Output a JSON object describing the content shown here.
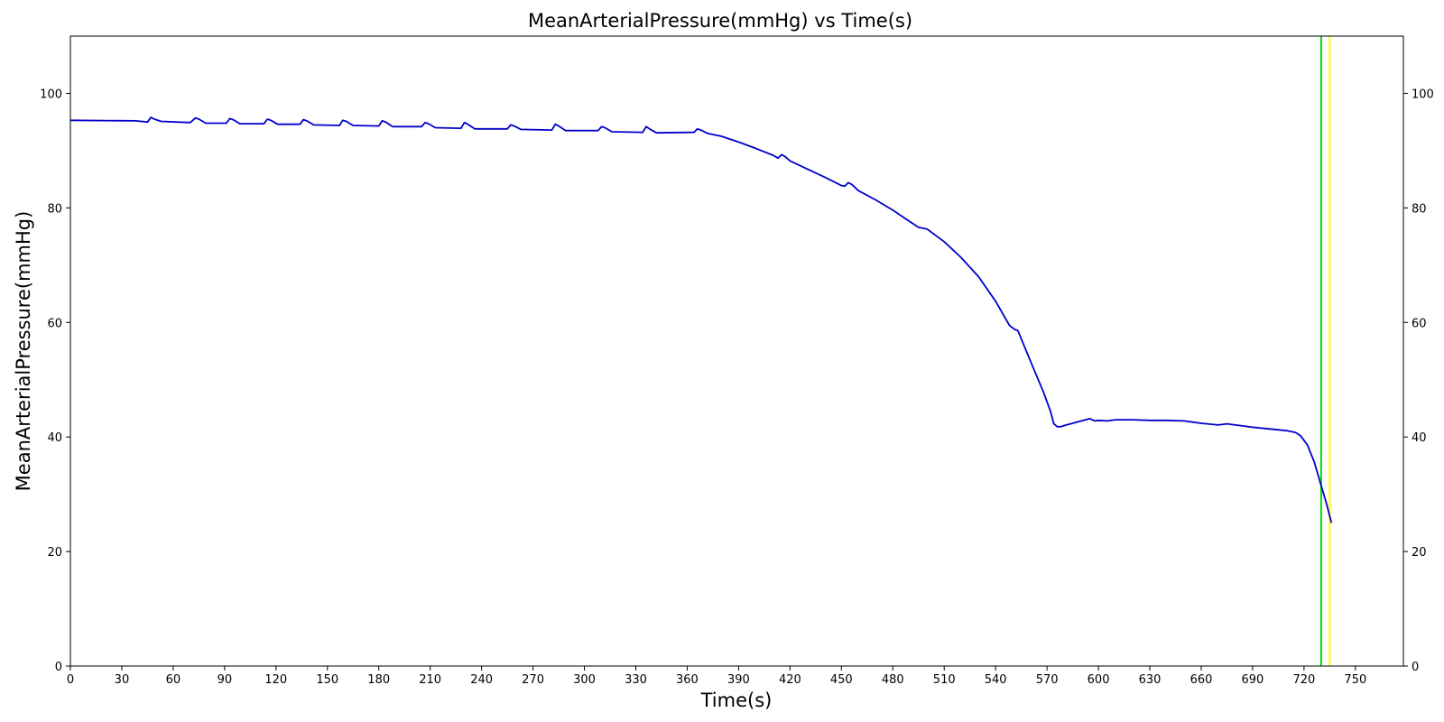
{
  "chart_data": {
    "type": "line",
    "title": "MeanArterialPressure(mmHg) vs Time(s)",
    "xlabel": "Time(s)",
    "ylabel": "MeanArterialPressure(mmHg)",
    "xlim": [
      0,
      778
    ],
    "ylim": [
      0,
      110
    ],
    "xticks": [
      0,
      30,
      60,
      90,
      120,
      150,
      180,
      210,
      240,
      270,
      300,
      330,
      360,
      390,
      420,
      450,
      480,
      510,
      540,
      570,
      600,
      630,
      660,
      690,
      720,
      750
    ],
    "yticks": [
      0,
      20,
      40,
      60,
      80,
      100
    ],
    "right_axis_ticks": [
      0,
      20,
      40,
      60,
      80,
      100
    ],
    "grid": false,
    "series": [
      {
        "color": "#0000cc",
        "x": [
          0,
          38,
          45,
          47,
          49,
          53,
          70,
          73,
          75,
          79,
          91,
          93,
          95,
          99,
          113,
          115,
          117,
          121,
          134,
          136,
          138,
          142,
          157,
          159,
          161,
          165,
          180,
          182,
          184,
          188,
          205,
          207,
          209,
          213,
          228,
          230,
          232,
          236,
          255,
          257,
          259,
          263,
          281,
          283,
          285,
          289,
          308,
          310,
          312,
          316,
          334,
          336,
          338,
          342,
          364,
          366,
          368,
          372,
          380,
          390,
          400,
          410,
          413,
          415,
          417,
          420,
          430,
          440,
          450,
          452,
          454,
          456,
          460,
          470,
          480,
          490,
          495,
          500,
          510,
          520,
          530,
          540,
          548,
          551,
          553,
          560,
          568,
          572,
          574,
          576,
          578,
          580,
          585,
          590,
          595,
          598,
          600,
          605,
          610,
          620,
          630,
          640,
          650,
          655,
          660,
          670,
          675,
          680,
          690,
          700,
          710,
          715,
          718,
          722,
          726,
          730,
          733,
          736
        ],
        "y": [
          95.3,
          95.2,
          95.0,
          95.8,
          95.5,
          95.1,
          94.9,
          95.7,
          95.5,
          94.8,
          94.8,
          95.6,
          95.4,
          94.7,
          94.7,
          95.5,
          95.3,
          94.6,
          94.6,
          95.4,
          95.2,
          94.5,
          94.4,
          95.3,
          95.1,
          94.4,
          94.3,
          95.2,
          95.0,
          94.2,
          94.2,
          94.9,
          94.7,
          94.0,
          93.9,
          94.9,
          94.6,
          93.8,
          93.8,
          94.5,
          94.3,
          93.7,
          93.6,
          94.6,
          94.3,
          93.5,
          93.5,
          94.2,
          94.0,
          93.3,
          93.2,
          94.2,
          93.8,
          93.1,
          93.2,
          93.8,
          93.6,
          93.0,
          92.5,
          91.5,
          90.4,
          89.2,
          88.7,
          89.3,
          89.0,
          88.2,
          86.8,
          85.4,
          83.9,
          83.8,
          84.4,
          84.1,
          83.0,
          81.4,
          79.6,
          77.6,
          76.6,
          76.3,
          74.1,
          71.3,
          68.0,
          63.7,
          59.5,
          58.8,
          58.6,
          53.5,
          47.8,
          44.5,
          42.3,
          41.8,
          41.8,
          42.0,
          42.4,
          42.8,
          43.2,
          42.8,
          42.9,
          42.8,
          43.0,
          43.0,
          42.9,
          42.9,
          42.8,
          42.6,
          42.4,
          42.1,
          42.3,
          42.1,
          41.7,
          41.4,
          41.1,
          40.8,
          40.2,
          38.6,
          35.6,
          31.5,
          28.5,
          25.0
        ]
      }
    ],
    "vertical_lines": [
      {
        "x": 730,
        "color": "#00dd00"
      },
      {
        "x": 735,
        "color": "#ffff00"
      }
    ]
  }
}
